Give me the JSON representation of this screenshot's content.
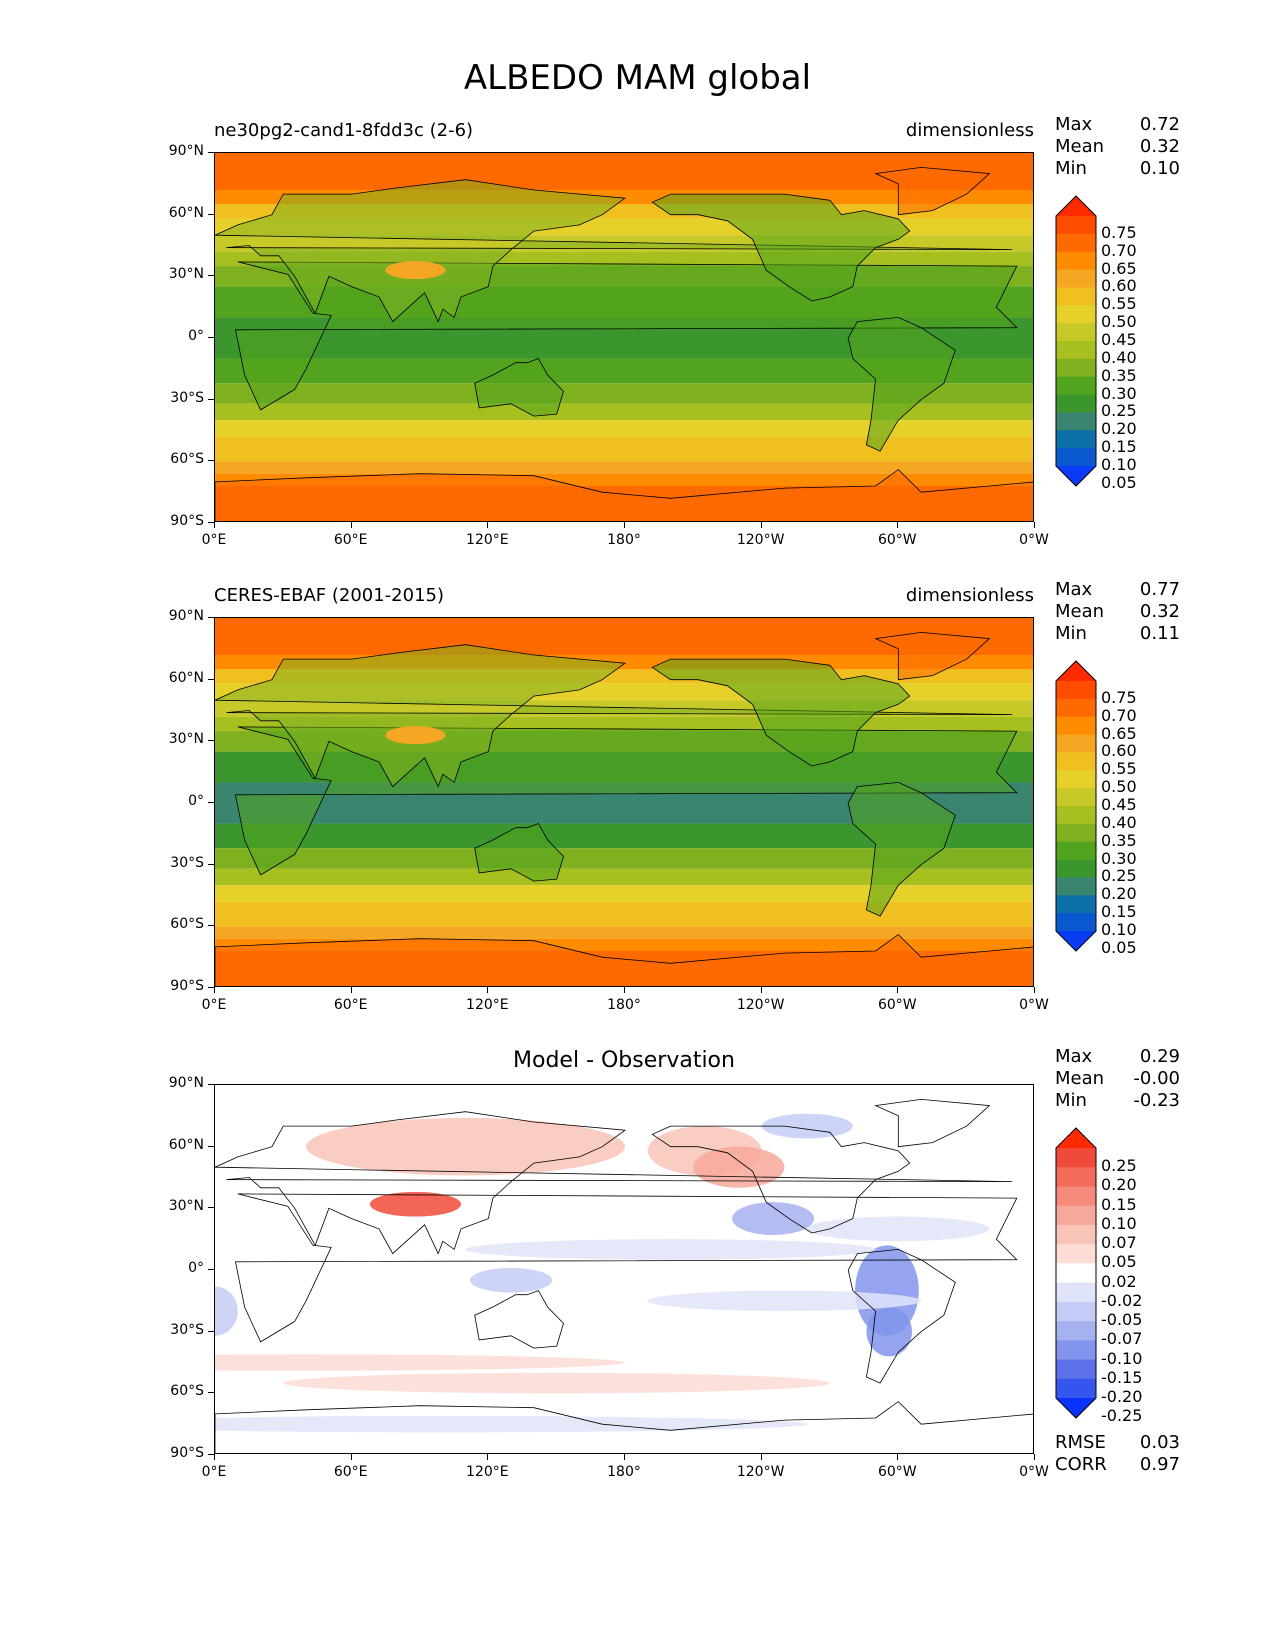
{
  "title": "ALBEDO MAM global",
  "x_ticks": [
    "0°E",
    "60°E",
    "120°E",
    "180°",
    "120°W",
    "60°W",
    "0°W"
  ],
  "y_ticks": [
    "90°N",
    "60°N",
    "30°N",
    "0°",
    "30°S",
    "60°S",
    "90°S"
  ],
  "panels": [
    {
      "left_label": "ne30pg2-cand1-8fdd3c (2-6)",
      "right_label": "dimensionless",
      "center_label": "",
      "stats": [
        {
          "label": "Max",
          "value": "0.72"
        },
        {
          "label": "Mean",
          "value": "0.32"
        },
        {
          "label": "Min",
          "value": "0.10"
        }
      ],
      "colorbar_labels": [
        "0.75",
        "0.70",
        "0.65",
        "0.60",
        "0.55",
        "0.50",
        "0.45",
        "0.40",
        "0.35",
        "0.30",
        "0.25",
        "0.20",
        "0.15",
        "0.10",
        "0.05"
      ],
      "colorbar_colors": [
        "#ff2a00",
        "#ff4d00",
        "#ff6a00",
        "#ff8c00",
        "#f5a623",
        "#f0c020",
        "#e6d02a",
        "#c7c928",
        "#a8bf20",
        "#7fb020",
        "#52a41e",
        "#3c962e",
        "#3a8570",
        "#0c6fa8",
        "#0a58d0",
        "#0a3cf5"
      ],
      "extra": []
    },
    {
      "left_label": "CERES-EBAF (2001-2015)",
      "right_label": "dimensionless",
      "center_label": "",
      "stats": [
        {
          "label": "Max",
          "value": "0.77"
        },
        {
          "label": "Mean",
          "value": "0.32"
        },
        {
          "label": "Min",
          "value": "0.11"
        }
      ],
      "colorbar_labels": [
        "0.75",
        "0.70",
        "0.65",
        "0.60",
        "0.55",
        "0.50",
        "0.45",
        "0.40",
        "0.35",
        "0.30",
        "0.25",
        "0.20",
        "0.15",
        "0.10",
        "0.05"
      ],
      "colorbar_colors": [
        "#ff2a00",
        "#ff4d00",
        "#ff6a00",
        "#ff8c00",
        "#f5a623",
        "#f0c020",
        "#e6d02a",
        "#c7c928",
        "#a8bf20",
        "#7fb020",
        "#52a41e",
        "#3c962e",
        "#3a8570",
        "#0c6fa8",
        "#0a58d0",
        "#0a3cf5"
      ],
      "extra": []
    },
    {
      "left_label": "",
      "right_label": "",
      "center_label": "Model - Observation",
      "stats": [
        {
          "label": "Max",
          "value": "0.29"
        },
        {
          "label": "Mean",
          "value": "-0.00"
        },
        {
          "label": "Min",
          "value": "-0.23"
        }
      ],
      "colorbar_labels": [
        "0.25",
        "0.20",
        "0.15",
        "0.10",
        "0.07",
        "0.05",
        "0.02",
        "-0.02",
        "-0.05",
        "-0.07",
        "-0.10",
        "-0.15",
        "-0.20",
        "-0.25"
      ],
      "colorbar_colors": [
        "#ff2a00",
        "#f04a3a",
        "#f26a5a",
        "#f58a7a",
        "#f7a89a",
        "#f9c4b8",
        "#fcdcd4",
        "#ffffff",
        "#dfe4f8",
        "#c4ccf5",
        "#a6b2f0",
        "#8394ec",
        "#5d72ea",
        "#3455ee",
        "#0a33ff"
      ],
      "extra": [
        {
          "label": "RMSE",
          "value": "0.03"
        },
        {
          "label": "CORR",
          "value": "0.97"
        }
      ]
    }
  ],
  "colors": {
    "ocean_band_tropic": "#3a8570",
    "band_mid": "#52a41e",
    "band_subpolar": "#e6d02a",
    "band_polar": "#ff6a00"
  }
}
